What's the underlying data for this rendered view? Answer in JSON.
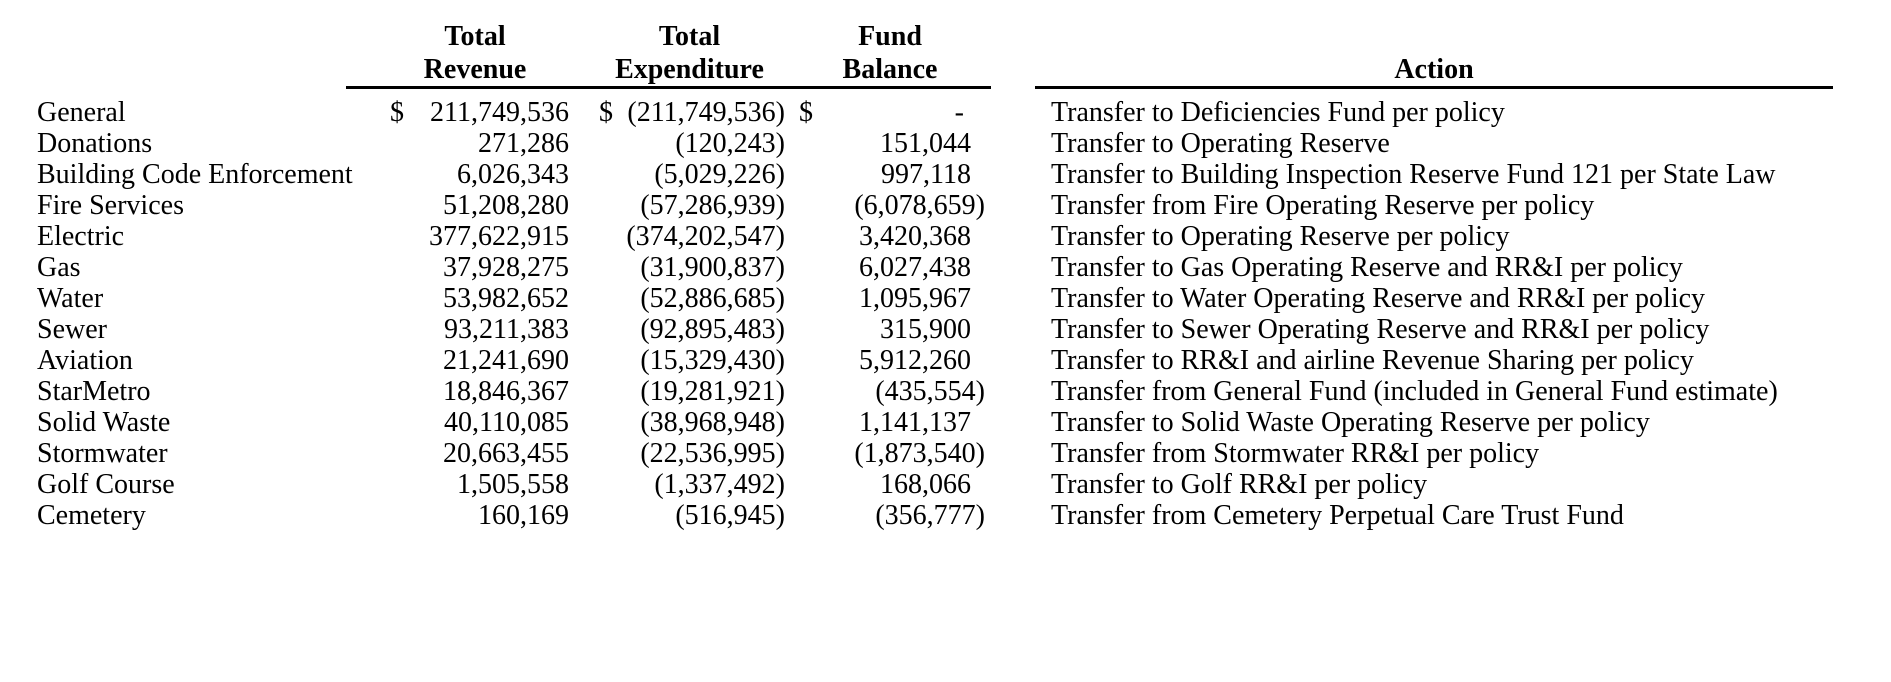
{
  "colors": {
    "text": "#000000",
    "background": "#ffffff"
  },
  "table": {
    "headers": {
      "revenue_line1": "Total",
      "revenue_line2": "Revenue",
      "expenditure_line1": "Total",
      "expenditure_line2": "Expenditure",
      "balance_line1": "Fund",
      "balance_line2": "Balance",
      "action": "Action"
    },
    "rows": [
      {
        "name": "General",
        "revenue_cur": "$",
        "revenue": "211,749,536",
        "expenditure_cur": "$",
        "expenditure": "(211,749,536)",
        "balance_cur": "$",
        "balance": "-   ",
        "action": "Transfer to Deficiencies Fund per policy"
      },
      {
        "name": "Donations",
        "revenue": "271,286",
        "expenditure": "(120,243)",
        "balance": "151,044  ",
        "action": "Transfer to Operating Reserve"
      },
      {
        "name": "Building Code Enforcement",
        "revenue": "6,026,343",
        "expenditure": "(5,029,226)",
        "balance": "997,118  ",
        "action": "Transfer to Building Inspection Reserve Fund 121 per State Law"
      },
      {
        "name": "Fire Services",
        "revenue": "51,208,280",
        "expenditure": "(57,286,939)",
        "balance": "(6,078,659)",
        "action": "Transfer from Fire Operating Reserve per policy"
      },
      {
        "name": "Electric",
        "revenue": "377,622,915",
        "expenditure": "(374,202,547)",
        "balance": "3,420,368  ",
        "action": "Transfer to Operating Reserve per policy"
      },
      {
        "name": "Gas",
        "revenue": "37,928,275",
        "expenditure": "(31,900,837)",
        "balance": "6,027,438  ",
        "action": "Transfer to Gas Operating Reserve and RR&I per policy"
      },
      {
        "name": "Water",
        "revenue": "53,982,652",
        "expenditure": "(52,886,685)",
        "balance": "1,095,967  ",
        "action": "Transfer to Water Operating Reserve and RR&I per policy"
      },
      {
        "name": "Sewer",
        "revenue": "93,211,383",
        "expenditure": "(92,895,483)",
        "balance": "315,900  ",
        "action": "Transfer to Sewer Operating Reserve and RR&I per policy"
      },
      {
        "name": "Aviation",
        "revenue": "21,241,690",
        "expenditure": "(15,329,430)",
        "balance": "5,912,260  ",
        "action": "Transfer to RR&I and airline Revenue Sharing per policy"
      },
      {
        "name": "StarMetro",
        "revenue": "18,846,367",
        "expenditure": "(19,281,921)",
        "balance": "(435,554)",
        "action": "Transfer from General Fund (included in General Fund estimate)"
      },
      {
        "name": "Solid Waste",
        "revenue": "40,110,085",
        "expenditure": "(38,968,948)",
        "balance": "1,141,137  ",
        "action": "Transfer to Solid Waste Operating Reserve per policy"
      },
      {
        "name": "Stormwater",
        "revenue": "20,663,455",
        "expenditure": "(22,536,995)",
        "balance": "(1,873,540)",
        "action": "Transfer from Stormwater RR&I per policy"
      },
      {
        "name": "Golf Course",
        "revenue": "1,505,558",
        "expenditure": "(1,337,492)",
        "balance": "168,066  ",
        "action": "Transfer to Golf RR&I per policy"
      },
      {
        "name": "Cemetery",
        "revenue": "160,169",
        "expenditure": "(516,945)",
        "balance": "(356,777)",
        "action": "Transfer from Cemetery Perpetual Care Trust Fund"
      }
    ]
  }
}
